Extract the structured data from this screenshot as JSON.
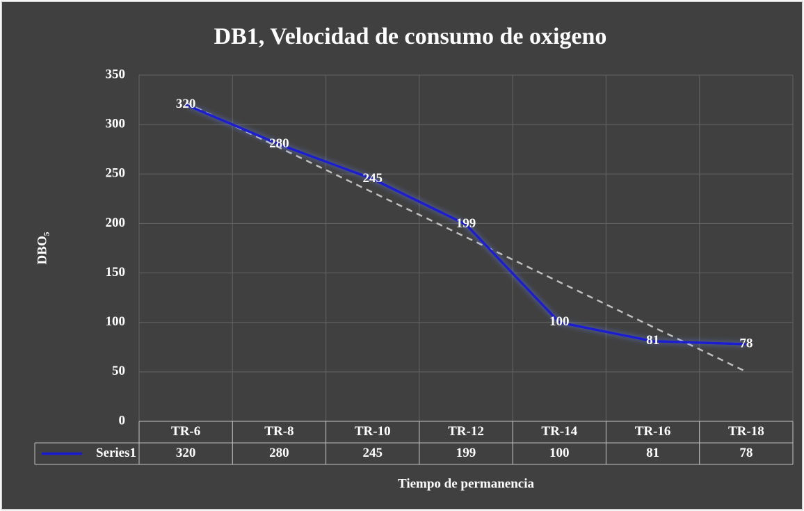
{
  "chart_data": {
    "type": "line",
    "title": "DB1, Velocidad de  consumo de oxigeno",
    "y_label": "DBO₅",
    "x_label": "Tiempo de permanencia",
    "categories": [
      "TR-6",
      "TR-8",
      "TR-10",
      "TR-12",
      "TR-14",
      "TR-16",
      "TR-18"
    ],
    "series": [
      {
        "name": "Series1",
        "color": "#1a1ad0",
        "values": [
          320,
          280,
          245,
          199,
          100,
          81,
          78
        ]
      }
    ],
    "trendline": "linear",
    "ylim": [
      0,
      350
    ],
    "yticks": [
      0,
      50,
      100,
      150,
      200,
      250,
      300,
      350
    ],
    "grid": true,
    "data_table": true
  }
}
